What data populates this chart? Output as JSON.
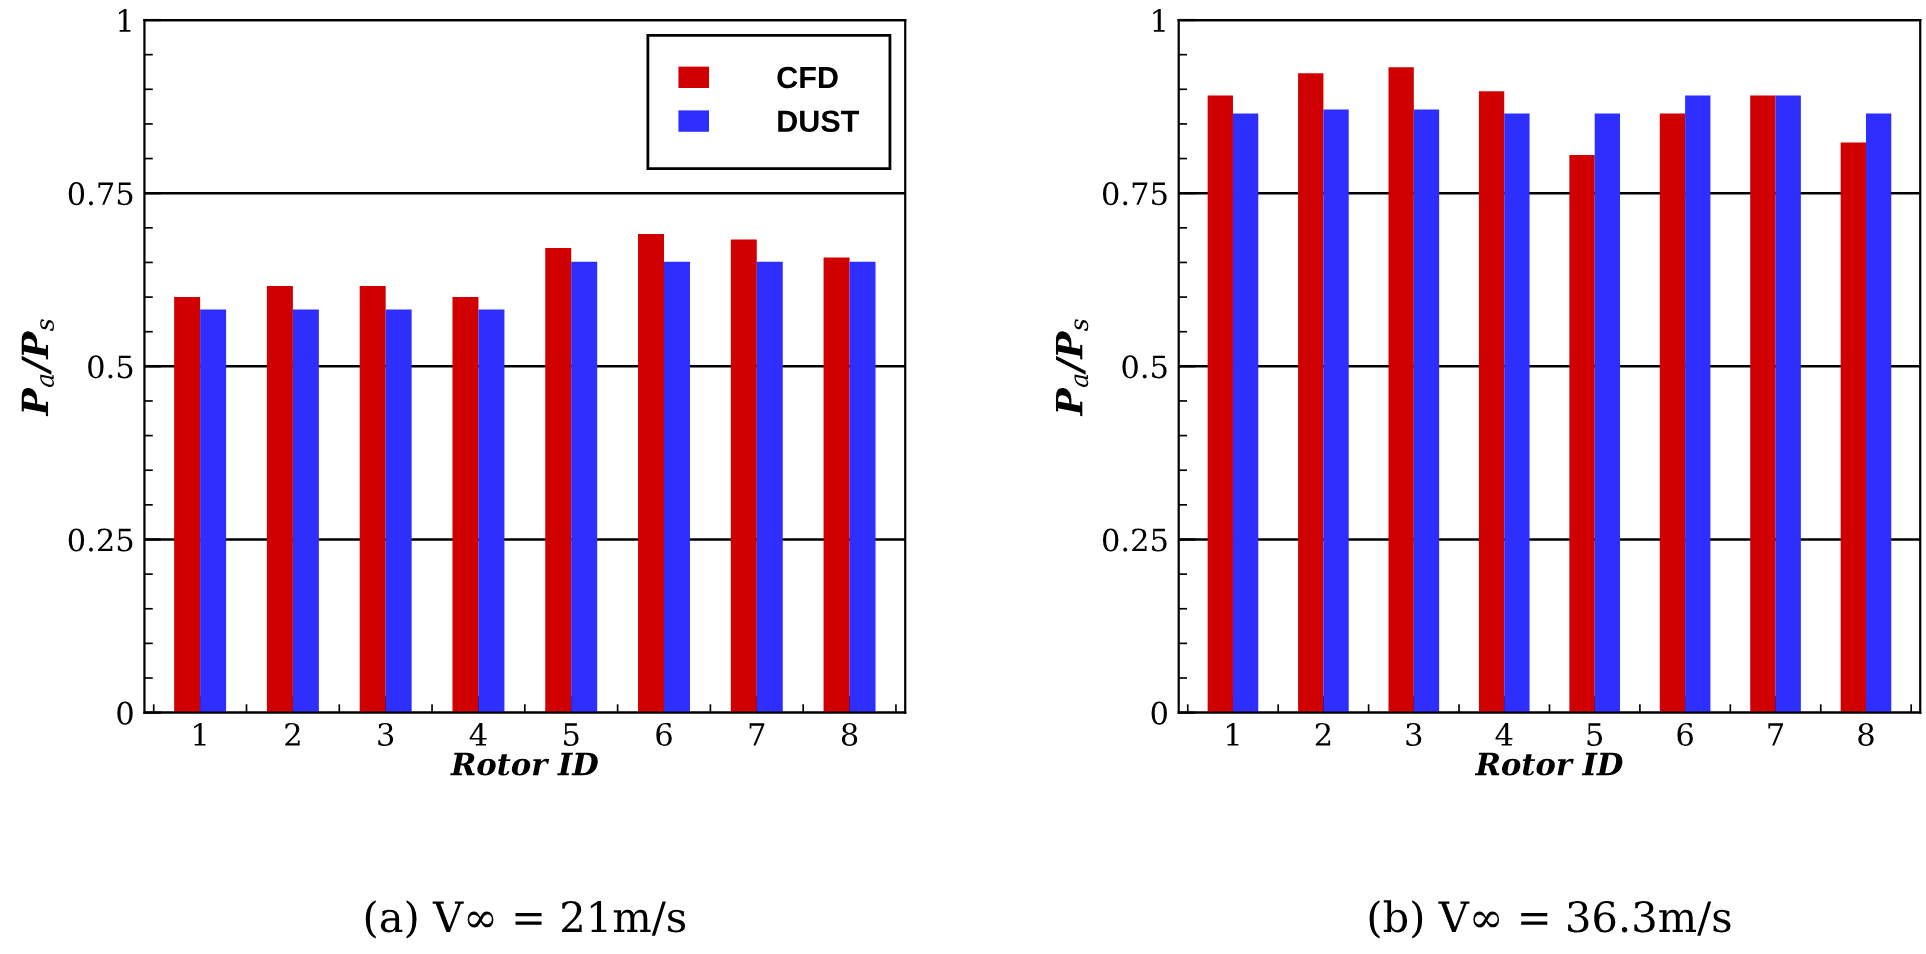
{
  "chart_data": [
    {
      "type": "bar",
      "xlabel": "Rotor ID",
      "ylabel": "P$_{a}$/P$_{s}$",
      "categories": [
        "1",
        "2",
        "3",
        "4",
        "5",
        "6",
        "7",
        "8"
      ],
      "series": [
        {
          "name": "CFD",
          "color": "#d10000",
          "values": [
            0.6,
            0.616,
            0.616,
            0.6,
            0.671,
            0.691,
            0.683,
            0.657
          ]
        },
        {
          "name": "DUST",
          "color": "#2e2eff",
          "values": [
            0.582,
            0.582,
            0.582,
            0.582,
            0.651,
            0.651,
            0.651,
            0.651
          ]
        }
      ],
      "ylim": [
        0,
        1
      ],
      "yticks": [
        0,
        0.25,
        0.5,
        0.75,
        1
      ],
      "grid": "y",
      "legend": "top right",
      "annotations": [
        "(a) V∞ = 21m/s"
      ]
    },
    {
      "type": "bar",
      "xlabel": "Rotor ID",
      "ylabel": "P$_{a}$/P$_{s}$",
      "categories": [
        "1",
        "2",
        "3",
        "4",
        "5",
        "6",
        "7",
        "8"
      ],
      "series": [
        {
          "color": "#d10000",
          "values": [
            0.891,
            0.923,
            0.932,
            0.897,
            0.805,
            0.865,
            0.891,
            0.823
          ]
        },
        {
          "color": "#2e2eff",
          "values": [
            0.865,
            0.871,
            0.871,
            0.865,
            0.865,
            0.891,
            0.891,
            0.865
          ]
        }
      ],
      "ylim": [
        0,
        1
      ],
      "yticks": [
        0,
        0.25,
        0.5,
        0.75,
        1
      ],
      "grid": "y",
      "annotations": [
        "(b) V∞ = 36.3m/s"
      ]
    }
  ]
}
